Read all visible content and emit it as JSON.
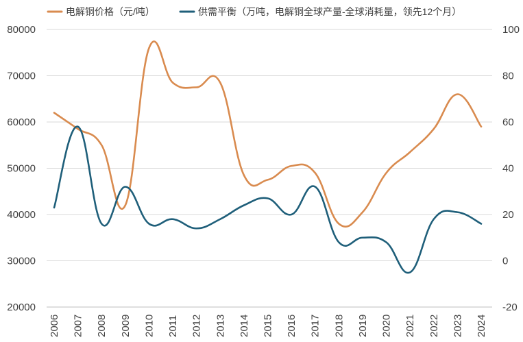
{
  "chart_data": {
    "type": "line",
    "title": "",
    "xlabel": "",
    "ylabel": "",
    "y2label": "",
    "categories": [
      "2006",
      "2007",
      "2008",
      "2009",
      "2010",
      "2011",
      "2012",
      "2013",
      "2014",
      "2015",
      "2016",
      "2017",
      "2018",
      "2019",
      "2020",
      "2021",
      "2022",
      "2023",
      "2024"
    ],
    "ylim": [
      20000,
      80000
    ],
    "yticks": [
      "80000",
      "70000",
      "60000",
      "50000",
      "40000",
      "30000",
      "20000"
    ],
    "y2lim": [
      -20,
      100
    ],
    "y2ticks": [
      "100",
      "80",
      "60",
      "40",
      "20",
      "0",
      "-20"
    ],
    "grid": "horizontal",
    "legend": "top",
    "series": [
      {
        "name": "电解铜价格（元/吨）",
        "axis": "left",
        "color": "#d98b4f",
        "values": [
          62000,
          58500,
          55000,
          42000,
          76000,
          68500,
          67500,
          68500,
          48500,
          47500,
          50500,
          49000,
          38000,
          40500,
          49000,
          53500,
          58500,
          66000,
          59000
        ]
      },
      {
        "name": "供需平衡（万吨，电解铜全球产量-全球消耗量，领先12个月）",
        "axis": "right",
        "color": "#1f5f7a",
        "values": [
          23,
          58,
          16,
          32,
          16,
          18,
          14,
          18,
          24,
          27,
          20,
          32,
          8,
          10,
          8,
          -5,
          18,
          21,
          16
        ]
      }
    ]
  }
}
